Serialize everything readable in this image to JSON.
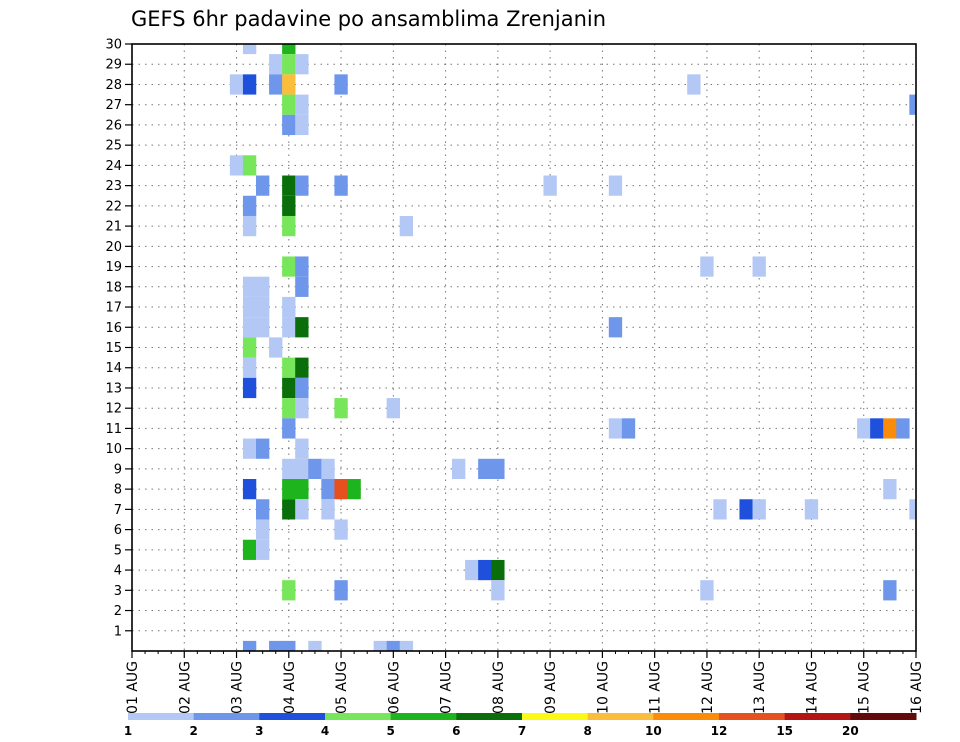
{
  "chart_data": {
    "type": "heatmap",
    "title": "GEFS 6hr padavine po ansamblima Zrenjanin",
    "x_tick_labels": [
      "01 AUG",
      "02 AUG",
      "03 AUG",
      "04 AUG",
      "05 AUG",
      "06 AUG",
      "07 AUG",
      "08 AUG",
      "09 AUG",
      "10 AUG",
      "11 AUG",
      "12 AUG",
      "13 AUG",
      "14 AUG",
      "15 AUG",
      "16 AUG"
    ],
    "x_unit": "6-hour steps from 01 AUG 00Z",
    "x_range": [
      0,
      60
    ],
    "y_tick_labels": [
      "1",
      "2",
      "3",
      "4",
      "5",
      "6",
      "7",
      "8",
      "9",
      "10",
      "11",
      "12",
      "13",
      "14",
      "15",
      "16",
      "17",
      "18",
      "19",
      "20",
      "21",
      "22",
      "23",
      "24",
      "25",
      "26",
      "27",
      "28",
      "29",
      "30"
    ],
    "y_range": [
      0,
      30
    ],
    "grid": true,
    "colorbar": {
      "levels": [
        "1",
        "2",
        "3",
        "4",
        "5",
        "6",
        "7",
        "8",
        "10",
        "12",
        "15",
        "20"
      ],
      "colors": [
        "#b4c8f5",
        "#6e96eb",
        "#1e50dc",
        "#78e65a",
        "#1eb41e",
        "#0a6e0a",
        "#fafa14",
        "#fabe3c",
        "#fa8c0a",
        "#e6501e",
        "#b41414",
        "#640a0a"
      ],
      "placement": "bottom"
    },
    "cells": [
      {
        "member": 30,
        "step": 9,
        "level": 1
      },
      {
        "member": 30,
        "step": 12,
        "level": 5
      },
      {
        "member": 29,
        "step": 11,
        "level": 1
      },
      {
        "member": 29,
        "step": 12,
        "level": 4
      },
      {
        "member": 29,
        "step": 13,
        "level": 1
      },
      {
        "member": 28,
        "step": 8,
        "level": 1
      },
      {
        "member": 28,
        "step": 9,
        "level": 3
      },
      {
        "member": 28,
        "step": 11,
        "level": 2
      },
      {
        "member": 28,
        "step": 12,
        "level": 8
      },
      {
        "member": 28,
        "step": 16,
        "level": 2
      },
      {
        "member": 28,
        "step": 43,
        "level": 1
      },
      {
        "member": 27,
        "step": 12,
        "level": 4
      },
      {
        "member": 27,
        "step": 13,
        "level": 1
      },
      {
        "member": 27,
        "step": 60,
        "level": 2
      },
      {
        "member": 26,
        "step": 12,
        "level": 2
      },
      {
        "member": 26,
        "step": 13,
        "level": 1
      },
      {
        "member": 24,
        "step": 8,
        "level": 1
      },
      {
        "member": 24,
        "step": 9,
        "level": 4
      },
      {
        "member": 23,
        "step": 10,
        "level": 2
      },
      {
        "member": 23,
        "step": 12,
        "level": 6
      },
      {
        "member": 23,
        "step": 13,
        "level": 2
      },
      {
        "member": 23,
        "step": 16,
        "level": 2
      },
      {
        "member": 23,
        "step": 32,
        "level": 1
      },
      {
        "member": 23,
        "step": 37,
        "level": 1
      },
      {
        "member": 22,
        "step": 9,
        "level": 2
      },
      {
        "member": 22,
        "step": 12,
        "level": 6
      },
      {
        "member": 21,
        "step": 9,
        "level": 1
      },
      {
        "member": 21,
        "step": 12,
        "level": 4
      },
      {
        "member": 21,
        "step": 21,
        "level": 1
      },
      {
        "member": 19,
        "step": 12,
        "level": 4
      },
      {
        "member": 19,
        "step": 13,
        "level": 2
      },
      {
        "member": 19,
        "step": 44,
        "level": 1
      },
      {
        "member": 19,
        "step": 48,
        "level": 1
      },
      {
        "member": 18,
        "step": 9,
        "level": 1
      },
      {
        "member": 18,
        "step": 10,
        "level": 1
      },
      {
        "member": 18,
        "step": 13,
        "level": 2
      },
      {
        "member": 17,
        "step": 9,
        "level": 1
      },
      {
        "member": 17,
        "step": 10,
        "level": 1
      },
      {
        "member": 17,
        "step": 12,
        "level": 1
      },
      {
        "member": 16,
        "step": 9,
        "level": 1
      },
      {
        "member": 16,
        "step": 10,
        "level": 1
      },
      {
        "member": 16,
        "step": 12,
        "level": 1
      },
      {
        "member": 16,
        "step": 13,
        "level": 6
      },
      {
        "member": 16,
        "step": 37,
        "level": 2
      },
      {
        "member": 15,
        "step": 9,
        "level": 4
      },
      {
        "member": 15,
        "step": 11,
        "level": 1
      },
      {
        "member": 14,
        "step": 9,
        "level": 1
      },
      {
        "member": 14,
        "step": 12,
        "level": 4
      },
      {
        "member": 14,
        "step": 13,
        "level": 6
      },
      {
        "member": 13,
        "step": 9,
        "level": 3
      },
      {
        "member": 13,
        "step": 12,
        "level": 6
      },
      {
        "member": 13,
        "step": 13,
        "level": 2
      },
      {
        "member": 12,
        "step": 12,
        "level": 4
      },
      {
        "member": 12,
        "step": 13,
        "level": 1
      },
      {
        "member": 12,
        "step": 16,
        "level": 4
      },
      {
        "member": 12,
        "step": 20,
        "level": 1
      },
      {
        "member": 11,
        "step": 12,
        "level": 2
      },
      {
        "member": 11,
        "step": 37,
        "level": 1
      },
      {
        "member": 11,
        "step": 38,
        "level": 2
      },
      {
        "member": 11,
        "step": 56,
        "level": 1
      },
      {
        "member": 11,
        "step": 57,
        "level": 3
      },
      {
        "member": 11,
        "step": 58,
        "level": 9
      },
      {
        "member": 11,
        "step": 59,
        "level": 2
      },
      {
        "member": 10,
        "step": 9,
        "level": 1
      },
      {
        "member": 10,
        "step": 10,
        "level": 2
      },
      {
        "member": 10,
        "step": 13,
        "level": 1
      },
      {
        "member": 9,
        "step": 12,
        "level": 1
      },
      {
        "member": 9,
        "step": 13,
        "level": 1
      },
      {
        "member": 9,
        "step": 14,
        "level": 2
      },
      {
        "member": 9,
        "step": 15,
        "level": 1
      },
      {
        "member": 9,
        "step": 25,
        "level": 1
      },
      {
        "member": 9,
        "step": 27,
        "level": 2
      },
      {
        "member": 9,
        "step": 28,
        "level": 2
      },
      {
        "member": 8,
        "step": 9,
        "level": 3
      },
      {
        "member": 8,
        "step": 12,
        "level": 5
      },
      {
        "member": 8,
        "step": 13,
        "level": 5
      },
      {
        "member": 8,
        "step": 15,
        "level": 2
      },
      {
        "member": 8,
        "step": 16,
        "level": 10
      },
      {
        "member": 8,
        "step": 17,
        "level": 5
      },
      {
        "member": 8,
        "step": 58,
        "level": 1
      },
      {
        "member": 7,
        "step": 10,
        "level": 2
      },
      {
        "member": 7,
        "step": 12,
        "level": 6
      },
      {
        "member": 7,
        "step": 13,
        "level": 1
      },
      {
        "member": 7,
        "step": 15,
        "level": 1
      },
      {
        "member": 7,
        "step": 45,
        "level": 1
      },
      {
        "member": 7,
        "step": 47,
        "level": 3
      },
      {
        "member": 7,
        "step": 48,
        "level": 1
      },
      {
        "member": 7,
        "step": 52,
        "level": 1
      },
      {
        "member": 7,
        "step": 60,
        "level": 1
      },
      {
        "member": 6,
        "step": 10,
        "level": 1
      },
      {
        "member": 6,
        "step": 16,
        "level": 1
      },
      {
        "member": 5,
        "step": 9,
        "level": 5
      },
      {
        "member": 5,
        "step": 10,
        "level": 1
      },
      {
        "member": 4,
        "step": 26,
        "level": 1
      },
      {
        "member": 4,
        "step": 27,
        "level": 3
      },
      {
        "member": 4,
        "step": 28,
        "level": 6
      },
      {
        "member": 3,
        "step": 12,
        "level": 4
      },
      {
        "member": 3,
        "step": 16,
        "level": 2
      },
      {
        "member": 3,
        "step": 28,
        "level": 1
      },
      {
        "member": 3,
        "step": 44,
        "level": 1
      },
      {
        "member": 3,
        "step": 58,
        "level": 2
      },
      {
        "member": 0,
        "step": 9,
        "level": 2
      },
      {
        "member": 0,
        "step": 11,
        "level": 2
      },
      {
        "member": 0,
        "step": 12,
        "level": 2
      },
      {
        "member": 0,
        "step": 14,
        "level": 1
      },
      {
        "member": 0,
        "step": 19,
        "level": 1
      },
      {
        "member": 0,
        "step": 20,
        "level": 2
      },
      {
        "member": 0,
        "step": 21,
        "level": 1
      }
    ]
  }
}
